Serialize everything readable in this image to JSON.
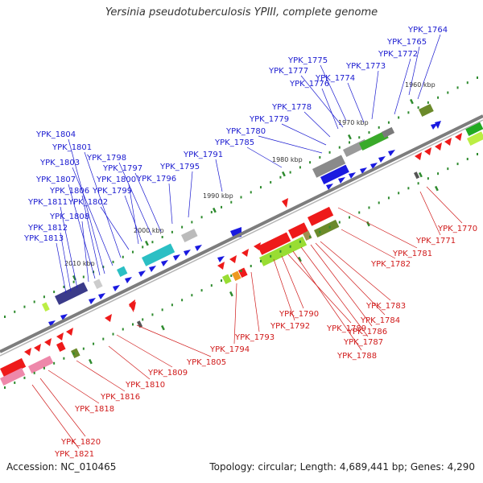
{
  "title": "Yersinia pseudotuberculosis YPIII, complete genome",
  "footer": {
    "accession": "Accession: NC_010465",
    "summary": "Topology: circular; Length: 4,689,441 bp; Genes: 4,290"
  },
  "colors": {
    "forward_label": "#1a1ad0",
    "reverse_label": "#d01a1a",
    "backbone": "#7a7a7a",
    "tick_major": "#2e8b2e",
    "tick_minor": "#2e8b2e"
  },
  "scale_labels": [
    "1960 kbp",
    "1970 kbp",
    "1980 kbp",
    "1990 kbp",
    "2000 kbp",
    "2010 kbp"
  ],
  "forward_genes": [
    "YPK_1764",
    "YPK_1765",
    "YPK_1772",
    "YPK_1773",
    "YPK_1775",
    "YPK_1774",
    "YPK_1777",
    "YPK_1776",
    "YPK_1778",
    "YPK_1779",
    "YPK_1780",
    "YPK_1785",
    "YPK_1791",
    "YPK_1795",
    "YPK_1796",
    "YPK_1797",
    "YPK_1798",
    "YPK_1799",
    "YPK_1800",
    "YPK_1801",
    "YPK_1802",
    "YPK_1803",
    "YPK_1804",
    "YPK_1806",
    "YPK_1807",
    "YPK_1808",
    "YPK_1811",
    "YPK_1812",
    "YPK_1813"
  ],
  "reverse_genes": [
    "YPK_1770",
    "YPK_1771",
    "YPK_1781",
    "YPK_1782",
    "YPK_1783",
    "YPK_1784",
    "YPK_1786",
    "YPK_1787",
    "YPK_1788",
    "YPK_1789",
    "YPK_1790",
    "YPK_1792",
    "YPK_1793",
    "YPK_1794",
    "YPK_1805",
    "YPK_1809",
    "YPK_1810",
    "YPK_1816",
    "YPK_1818",
    "YPK_1820",
    "YPK_1821"
  ]
}
